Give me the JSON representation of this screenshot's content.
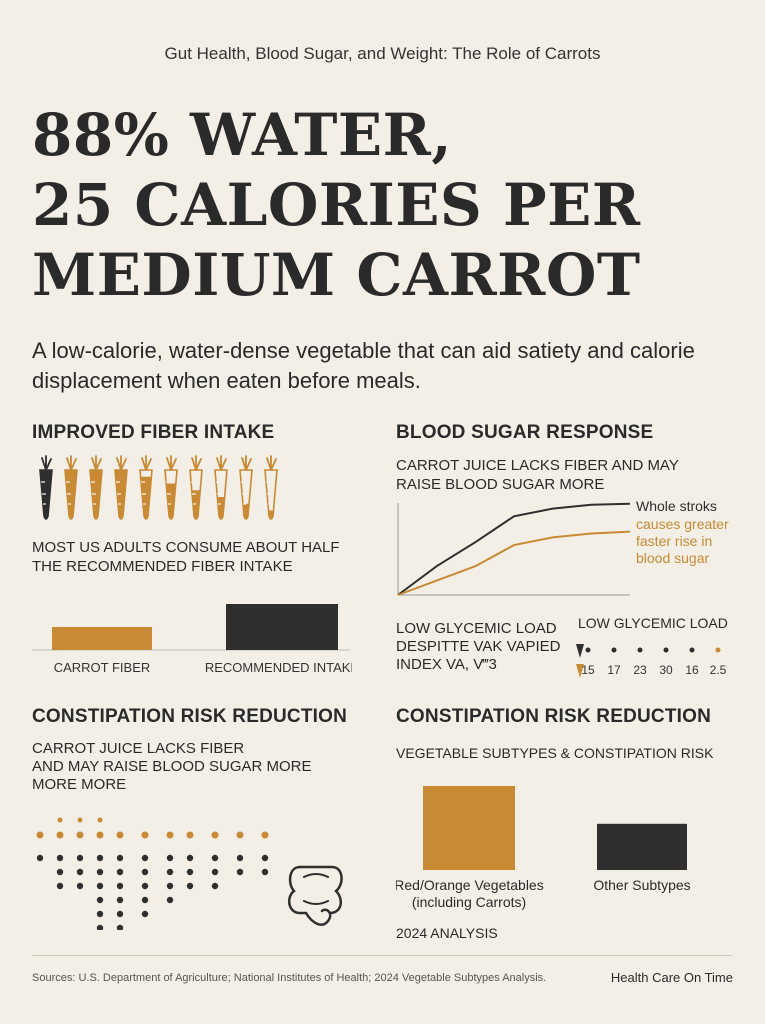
{
  "header": {
    "kicker": "Gut Health, Blood Sugar, and Weight: The Role of Carrots",
    "headline_lines": [
      "88% WATER,",
      "25 CALORIES PER",
      "MEDIUM CARROT"
    ],
    "subtitle": "A low-calorie, water-dense vegetable that can aid satiety and calorie displacement when eaten before meals."
  },
  "fiber": {
    "title": "IMPROVED FIBER INTAKE",
    "carrot_count": 10,
    "caption_lines": [
      "MOST US ADULTS CONSUME ABOUT HALF",
      "THE RECOMMENDED FIBER INTAKE"
    ],
    "chart_data": {
      "type": "bar",
      "categories": [
        "CARROT FIBER",
        "RECOMMENDED INTAKE"
      ],
      "values": [
        0.5,
        1.0
      ],
      "colors": [
        "#c98a35",
        "#2f2f2f"
      ]
    }
  },
  "blood_sugar": {
    "title": "BLOOD SUGAR RESPONSE",
    "caption_lines": [
      "CARROT JUICE LACKS FIBER AND MAY",
      "RAISE BLOOD SUGAR MORE"
    ],
    "chart_data": {
      "type": "line",
      "x": [
        0,
        1,
        2,
        3,
        4,
        5,
        6
      ],
      "series": [
        {
          "name": "Whole stroks",
          "values": [
            0,
            0.3,
            0.55,
            0.82,
            0.9,
            0.94,
            0.95
          ],
          "color": "#2f2f2f"
        },
        {
          "name": "causes greater faster rise in blood sugar",
          "values": [
            0,
            0.15,
            0.3,
            0.52,
            0.6,
            0.64,
            0.66
          ],
          "color": "#c98a35"
        }
      ]
    },
    "legend_dark_lines": [
      "Whole stroks"
    ],
    "legend_orange_lines": [
      "causes greater",
      "faster rise in",
      "blood sugar"
    ],
    "glycemic_caption_lines": [
      "LOW GLYCEMIC LOAD",
      "DESPITTE VAK VAPIED",
      "INDEX VA, V‴3"
    ],
    "glycemic_title": "LOW GLYCEMIC LOAD",
    "glycemic_values": [
      "15",
      "17",
      "23",
      "30",
      "16",
      "2.5"
    ]
  },
  "constipation_left": {
    "title": "CONSTIPATION RISK REDUCTION",
    "caption_lines": [
      "CARROT JUICE LACKS FIBER",
      "AND MAY RAISE BLOOD SUGAR MORE",
      "MORE MORE"
    ]
  },
  "constipation_right": {
    "title": "CONSTIPATION RISK REDUCTION",
    "subtitle": "VEGETABLE SUBTYPES & CONSTIPATION RISK",
    "chart_data": {
      "type": "bar",
      "categories": [
        "Red/Orange Vegetables (including Carrots)",
        "Other Subtypes"
      ],
      "category_lines": [
        [
          "Red/Orange Vegetables",
          "(including Carrots)"
        ],
        [
          "Other Subtypes"
        ]
      ],
      "values": [
        1.0,
        0.55
      ],
      "colors": [
        "#c98a35",
        "#2f2f2f"
      ]
    },
    "analysis": "2024 ANALYSIS"
  },
  "footer": {
    "sources": "Sources: U.S. Department of Agriculture; National Institutes of Health; 2024 Vegetable Subtypes Analysis.",
    "brand": "Health Care On Time"
  },
  "colors": {
    "accent": "#c98a35",
    "dark": "#2f2f2f",
    "background": "#f3efe6"
  }
}
